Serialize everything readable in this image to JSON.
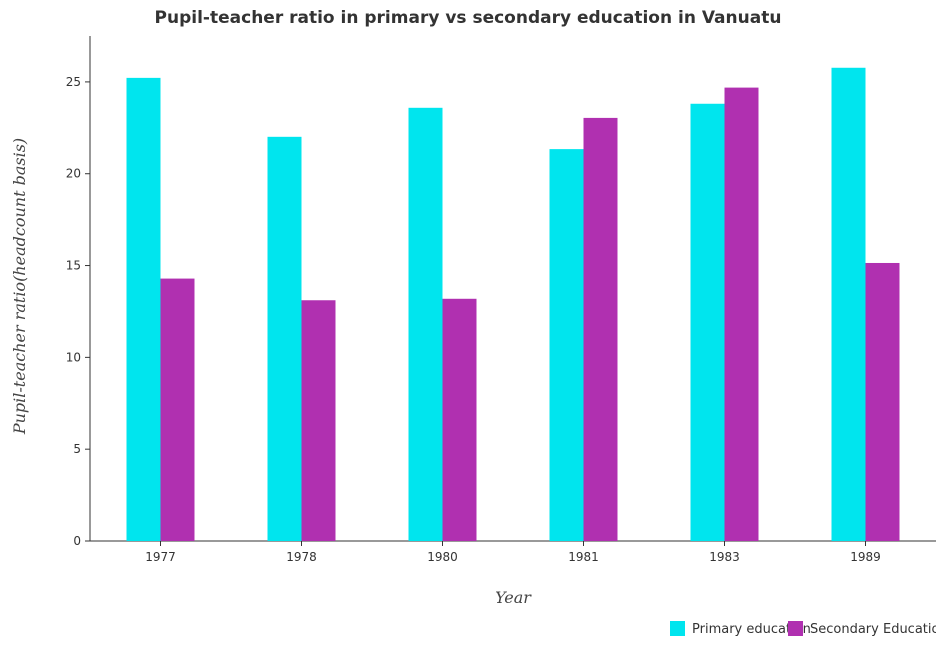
{
  "chart_data": {
    "type": "bar",
    "title": "Pupil-teacher ratio in primary vs secondary education in Vanuatu",
    "xlabel": "Year",
    "ylabel": "Pupil-teacher ratio(headcount basis)",
    "categories": [
      "1977",
      "1978",
      "1980",
      "1981",
      "1983",
      "1989"
    ],
    "series": [
      {
        "name": "Primary education",
        "color": "#00e5ee",
        "values": [
          25.22,
          22.01,
          23.59,
          21.34,
          23.81,
          25.77
        ]
      },
      {
        "name": "Secondary Education",
        "color": "#b030b0",
        "values": [
          14.29,
          13.11,
          13.19,
          23.04,
          24.69,
          15.14
        ]
      }
    ],
    "ylim": [
      0,
      27.5
    ],
    "yticks": [
      0,
      5,
      10,
      15,
      20,
      25
    ],
    "grid": false,
    "legend_position": "bottom-right"
  }
}
